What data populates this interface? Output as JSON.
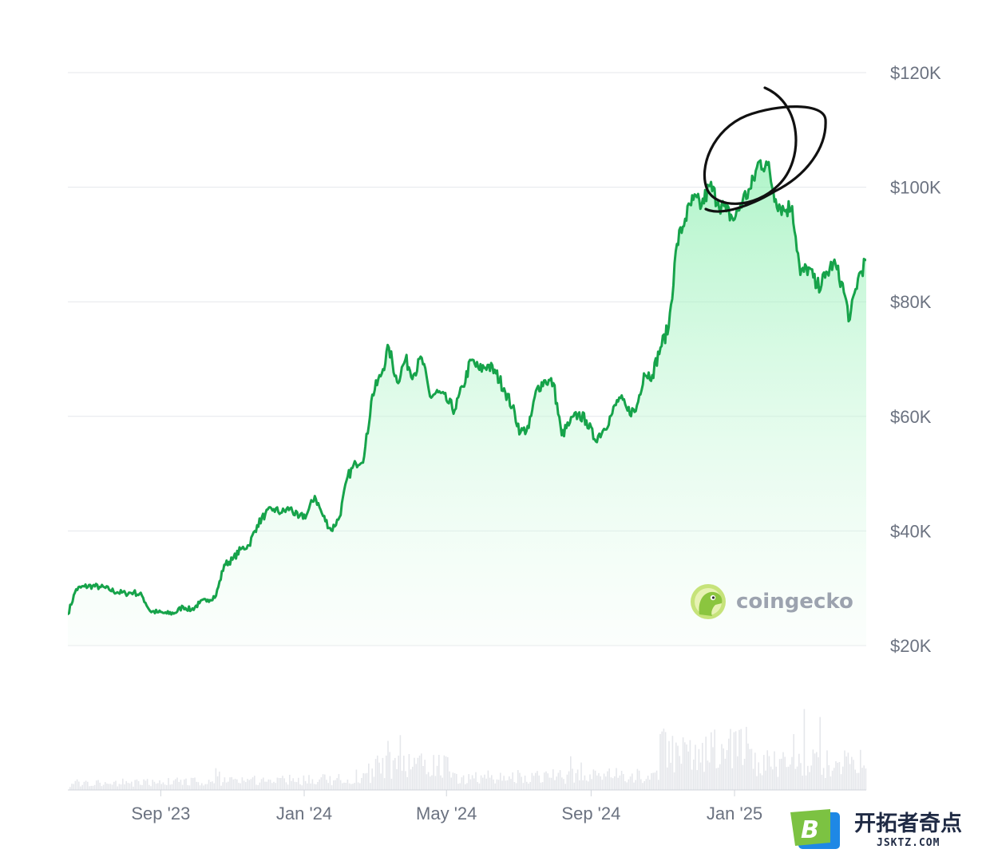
{
  "chart_data": {
    "type": "area",
    "x_axis": {
      "tick_labels": [
        "Sep '23",
        "Jan '24",
        "May '24",
        "Sep '24",
        "Jan '25"
      ]
    },
    "y_axis": {
      "tick_values": [
        20000,
        40000,
        60000,
        80000,
        100000,
        120000
      ],
      "tick_labels": [
        "$20K",
        "$40K",
        "$60K",
        "$80K",
        "$100K",
        "$120K"
      ],
      "range": [
        20000,
        120000
      ]
    },
    "grid": true,
    "series": [
      {
        "x": [
          "2023-06-14",
          "2023-06-21",
          "2023-06-28",
          "2023-07-05",
          "2023-07-12",
          "2023-07-19",
          "2023-07-26",
          "2023-08-02",
          "2023-08-09",
          "2023-08-16",
          "2023-08-23",
          "2023-08-30",
          "2023-09-06",
          "2023-09-13",
          "2023-09-20",
          "2023-09-27",
          "2023-10-04",
          "2023-10-11",
          "2023-10-18",
          "2023-10-25",
          "2023-11-01",
          "2023-11-08",
          "2023-11-15",
          "2023-11-22",
          "2023-11-29",
          "2023-12-06",
          "2023-12-13",
          "2023-12-20",
          "2023-12-27",
          "2024-01-03",
          "2024-01-10",
          "2024-01-17",
          "2024-01-24",
          "2024-01-31",
          "2024-02-07",
          "2024-02-14",
          "2024-02-21",
          "2024-02-28",
          "2024-03-06",
          "2024-03-13",
          "2024-03-20",
          "2024-03-27",
          "2024-04-03",
          "2024-04-10",
          "2024-04-17",
          "2024-04-24",
          "2024-05-01",
          "2024-05-08",
          "2024-05-15",
          "2024-05-22",
          "2024-05-29",
          "2024-06-05",
          "2024-06-12",
          "2024-06-19",
          "2024-06-26",
          "2024-07-03",
          "2024-07-10",
          "2024-07-17",
          "2024-07-24",
          "2024-07-31",
          "2024-08-07",
          "2024-08-14",
          "2024-08-21",
          "2024-08-28",
          "2024-09-04",
          "2024-09-11",
          "2024-09-18",
          "2024-09-25",
          "2024-10-02",
          "2024-10-09",
          "2024-10-16",
          "2024-10-23",
          "2024-10-30",
          "2024-11-06",
          "2024-11-13",
          "2024-11-20",
          "2024-11-27",
          "2024-12-04",
          "2024-12-11",
          "2024-12-18",
          "2024-12-25",
          "2025-01-01",
          "2025-01-08",
          "2025-01-15",
          "2025-01-22",
          "2025-01-29",
          "2025-02-05",
          "2025-02-12",
          "2025-02-19",
          "2025-02-26",
          "2025-03-05",
          "2025-03-12",
          "2025-03-19",
          "2025-03-26",
          "2025-04-02",
          "2025-04-09",
          "2025-04-16",
          "2025-04-23"
        ],
        "values": [
          25500,
          29800,
          30300,
          30400,
          30200,
          29800,
          29300,
          29100,
          29300,
          28700,
          26000,
          25800,
          25600,
          25700,
          26800,
          26200,
          27400,
          28000,
          28700,
          34100,
          35000,
          36800,
          37500,
          41000,
          43000,
          43800,
          43200,
          44000,
          42300,
          42800,
          46100,
          42600,
          40100,
          42400,
          49500,
          51800,
          53000,
          63800,
          67000,
          72000,
          66000,
          69900,
          67300,
          70200,
          63500,
          64200,
          62800,
          61100,
          65200,
          69800,
          68100,
          69000,
          67500,
          64900,
          61600,
          57200,
          58000,
          64900,
          66300,
          65800,
          56700,
          58900,
          60400,
          59300,
          56000,
          57500,
          60100,
          63300,
          61000,
          60900,
          67500,
          67200,
          72000,
          75600,
          90100,
          94500,
          97800,
          96800,
          100200,
          97500,
          95800,
          94400,
          97800,
          99800,
          104500,
          103900,
          97900,
          96000,
          96700,
          84700,
          86000,
          82500,
          84200,
          86900,
          83500,
          76900,
          84100,
          87300
        ]
      }
    ],
    "annotations": [
      "coingecko"
    ]
  },
  "watermark": {
    "cn_text": "开拓者奇点",
    "url_text": "JSKTZ.COM",
    "logo_letter": "B"
  },
  "colors": {
    "line": "#16a34a",
    "area_top": "#86efac",
    "area_bottom": "#f0fdf4",
    "grid": "#e5e7eb",
    "tick_text": "#6b7280",
    "volume": "#e5e7eb",
    "ink": "#111111"
  }
}
